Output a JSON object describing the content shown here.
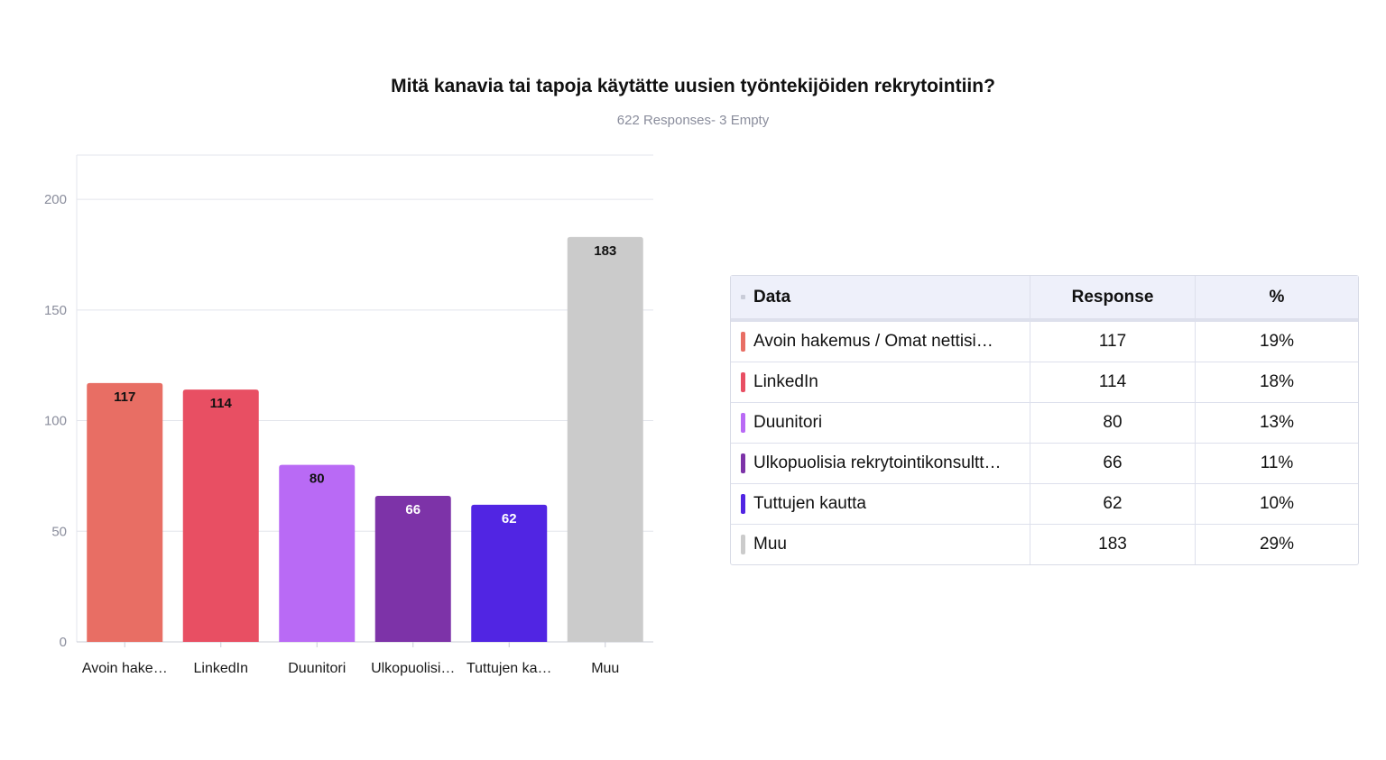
{
  "title": "Mitä kanavia tai tapoja käytätte uusien työntekijöiden rekrytointiin?",
  "subtitle": "622 Responses- 3 Empty",
  "chart_data": {
    "type": "bar",
    "title": "Mitä kanavia tai tapoja käytätte uusien työntekijöiden rekrytointiin?",
    "subtitle": "622 Responses- 3 Empty",
    "categories": [
      "Avoin hake…",
      "LinkedIn",
      "Duunitori",
      "Ulkopuolisi…",
      "Tuttujen ka…",
      "Muu"
    ],
    "values": [
      117,
      114,
      80,
      66,
      62,
      183
    ],
    "colors": [
      "#e86e64",
      "#e84f63",
      "#b96af5",
      "#7d33a8",
      "#5125e3",
      "#cbcbcb"
    ],
    "label_colors": [
      "#111111",
      "#111111",
      "#111111",
      "#ffffff",
      "#ffffff",
      "#111111"
    ],
    "ylim": [
      0,
      220
    ],
    "yticks": [
      0,
      50,
      100,
      150,
      200
    ],
    "grid": true,
    "xlabel": "",
    "ylabel": ""
  },
  "table": {
    "headers": [
      "Data",
      "Response",
      "%"
    ],
    "rows": [
      {
        "label": "Avoin hakemus / Omat nettisi…",
        "response": "117",
        "pct": "19%",
        "color": "#e86e64"
      },
      {
        "label": "LinkedIn",
        "response": "114",
        "pct": "18%",
        "color": "#e84f63"
      },
      {
        "label": "Duunitori",
        "response": "80",
        "pct": "13%",
        "color": "#b96af5"
      },
      {
        "label": "Ulkopuolisia rekrytointikonsultt…",
        "response": "66",
        "pct": "11%",
        "color": "#7d33a8"
      },
      {
        "label": "Tuttujen kautta",
        "response": "62",
        "pct": "10%",
        "color": "#5125e3"
      },
      {
        "label": "Muu",
        "response": "183",
        "pct": "29%",
        "color": "#cbcbcb"
      }
    ]
  }
}
